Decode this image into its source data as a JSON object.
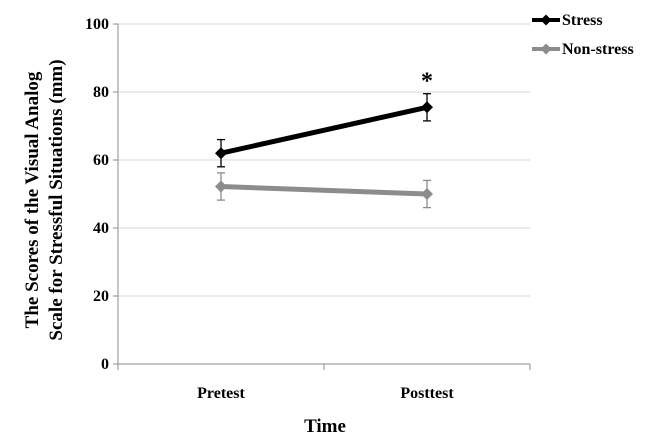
{
  "chart_data": {
    "type": "line",
    "categories": [
      "Pretest",
      "Posttest"
    ],
    "series": [
      {
        "name": "Stress",
        "values": [
          62,
          75.5
        ],
        "errors": [
          4,
          4
        ],
        "color": "#000000"
      },
      {
        "name": "Non-stress",
        "values": [
          52.2,
          50
        ],
        "errors": [
          4,
          4
        ],
        "color": "#8c8c8c"
      }
    ],
    "xlabel": "Time",
    "ylabel_lines": [
      "The Scores of the Visual Analog",
      "Scale for Stressful Situations (mm)"
    ],
    "ylim": [
      0,
      100
    ],
    "yticks": [
      "0",
      "20",
      "40",
      "60",
      "80",
      "100"
    ],
    "grid": true,
    "legend": "top-right",
    "annotations": [
      {
        "text": "*",
        "category": "Posttest",
        "value": 84
      }
    ]
  }
}
